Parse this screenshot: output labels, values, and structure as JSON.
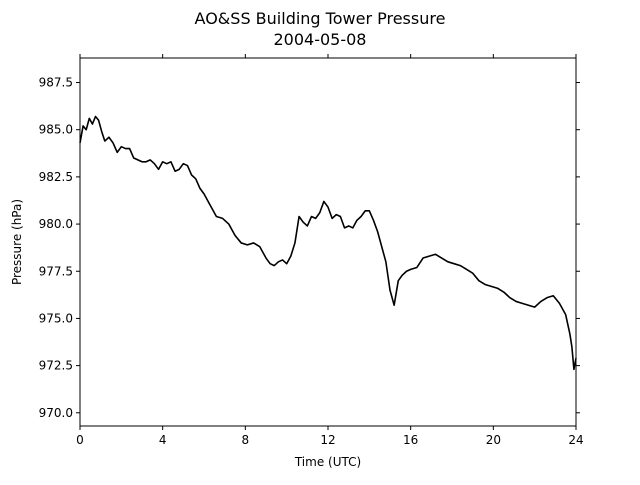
{
  "chart_data": {
    "type": "line",
    "title": "AO&SS Building Tower Pressure",
    "subtitle": "2004-05-08",
    "xlabel": "Time (UTC)",
    "ylabel": "Pressure (hPa)",
    "xlim": [
      0,
      24
    ],
    "ylim": [
      969.3,
      988.8
    ],
    "x_ticks": [
      0,
      4,
      8,
      12,
      16,
      20,
      24
    ],
    "y_ticks": [
      970.0,
      972.5,
      975.0,
      977.5,
      980.0,
      982.5,
      985.0,
      987.5
    ],
    "y_tick_labels": [
      "970.0",
      "972.5",
      "975.0",
      "977.5",
      "980.0",
      "982.5",
      "985.0",
      "987.5"
    ],
    "grid": false,
    "line_color": "#000000",
    "series": [
      {
        "x": [
          0.0,
          0.15,
          0.3,
          0.45,
          0.6,
          0.75,
          0.9,
          1.05,
          1.2,
          1.4,
          1.6,
          1.8,
          2.0,
          2.2,
          2.4,
          2.6,
          2.8,
          3.0,
          3.2,
          3.4,
          3.6,
          3.8,
          4.0,
          4.2,
          4.4,
          4.6,
          4.8,
          5.0,
          5.2,
          5.4,
          5.6,
          5.8,
          6.0,
          6.3,
          6.6,
          6.9,
          7.2,
          7.5,
          7.8,
          8.1,
          8.4,
          8.7,
          9.0,
          9.2,
          9.4,
          9.6,
          9.8,
          10.0,
          10.2,
          10.4,
          10.6,
          10.8,
          11.0,
          11.2,
          11.4,
          11.6,
          11.8,
          12.0,
          12.2,
          12.4,
          12.6,
          12.8,
          13.0,
          13.2,
          13.4,
          13.6,
          13.8,
          14.0,
          14.2,
          14.4,
          14.6,
          14.8,
          15.0,
          15.2,
          15.4,
          15.6,
          15.8,
          16.0,
          16.3,
          16.6,
          16.9,
          17.2,
          17.5,
          17.8,
          18.1,
          18.4,
          18.7,
          19.0,
          19.3,
          19.6,
          19.9,
          20.2,
          20.5,
          20.8,
          21.1,
          21.4,
          21.7,
          22.0,
          22.3,
          22.6,
          22.9,
          23.2,
          23.5,
          23.7,
          23.8,
          23.9,
          24.0
        ],
        "values": [
          984.3,
          985.2,
          985.0,
          985.6,
          985.3,
          985.7,
          985.5,
          984.9,
          984.4,
          984.6,
          984.3,
          983.8,
          984.1,
          984.0,
          984.0,
          983.5,
          983.4,
          983.3,
          983.3,
          983.4,
          983.2,
          982.9,
          983.3,
          983.2,
          983.3,
          982.8,
          982.9,
          983.2,
          983.1,
          982.6,
          982.4,
          981.9,
          981.6,
          981.0,
          980.4,
          980.3,
          980.0,
          979.4,
          979.0,
          978.9,
          979.0,
          978.8,
          978.2,
          977.9,
          977.8,
          978.0,
          978.1,
          977.9,
          978.3,
          979.0,
          980.4,
          980.1,
          979.9,
          980.4,
          980.3,
          980.6,
          981.2,
          980.9,
          980.3,
          980.5,
          980.4,
          979.8,
          979.9,
          979.8,
          980.2,
          980.4,
          980.7,
          980.7,
          980.2,
          979.6,
          978.8,
          978.0,
          976.5,
          975.7,
          977.0,
          977.3,
          977.5,
          977.6,
          977.7,
          978.2,
          978.3,
          978.4,
          978.2,
          978.0,
          977.9,
          977.8,
          977.6,
          977.4,
          977.0,
          976.8,
          976.7,
          976.6,
          976.4,
          976.1,
          975.9,
          975.8,
          975.7,
          975.6,
          975.9,
          976.1,
          976.2,
          975.8,
          975.2,
          974.2,
          973.5,
          972.3,
          972.9
        ]
      }
    ]
  }
}
